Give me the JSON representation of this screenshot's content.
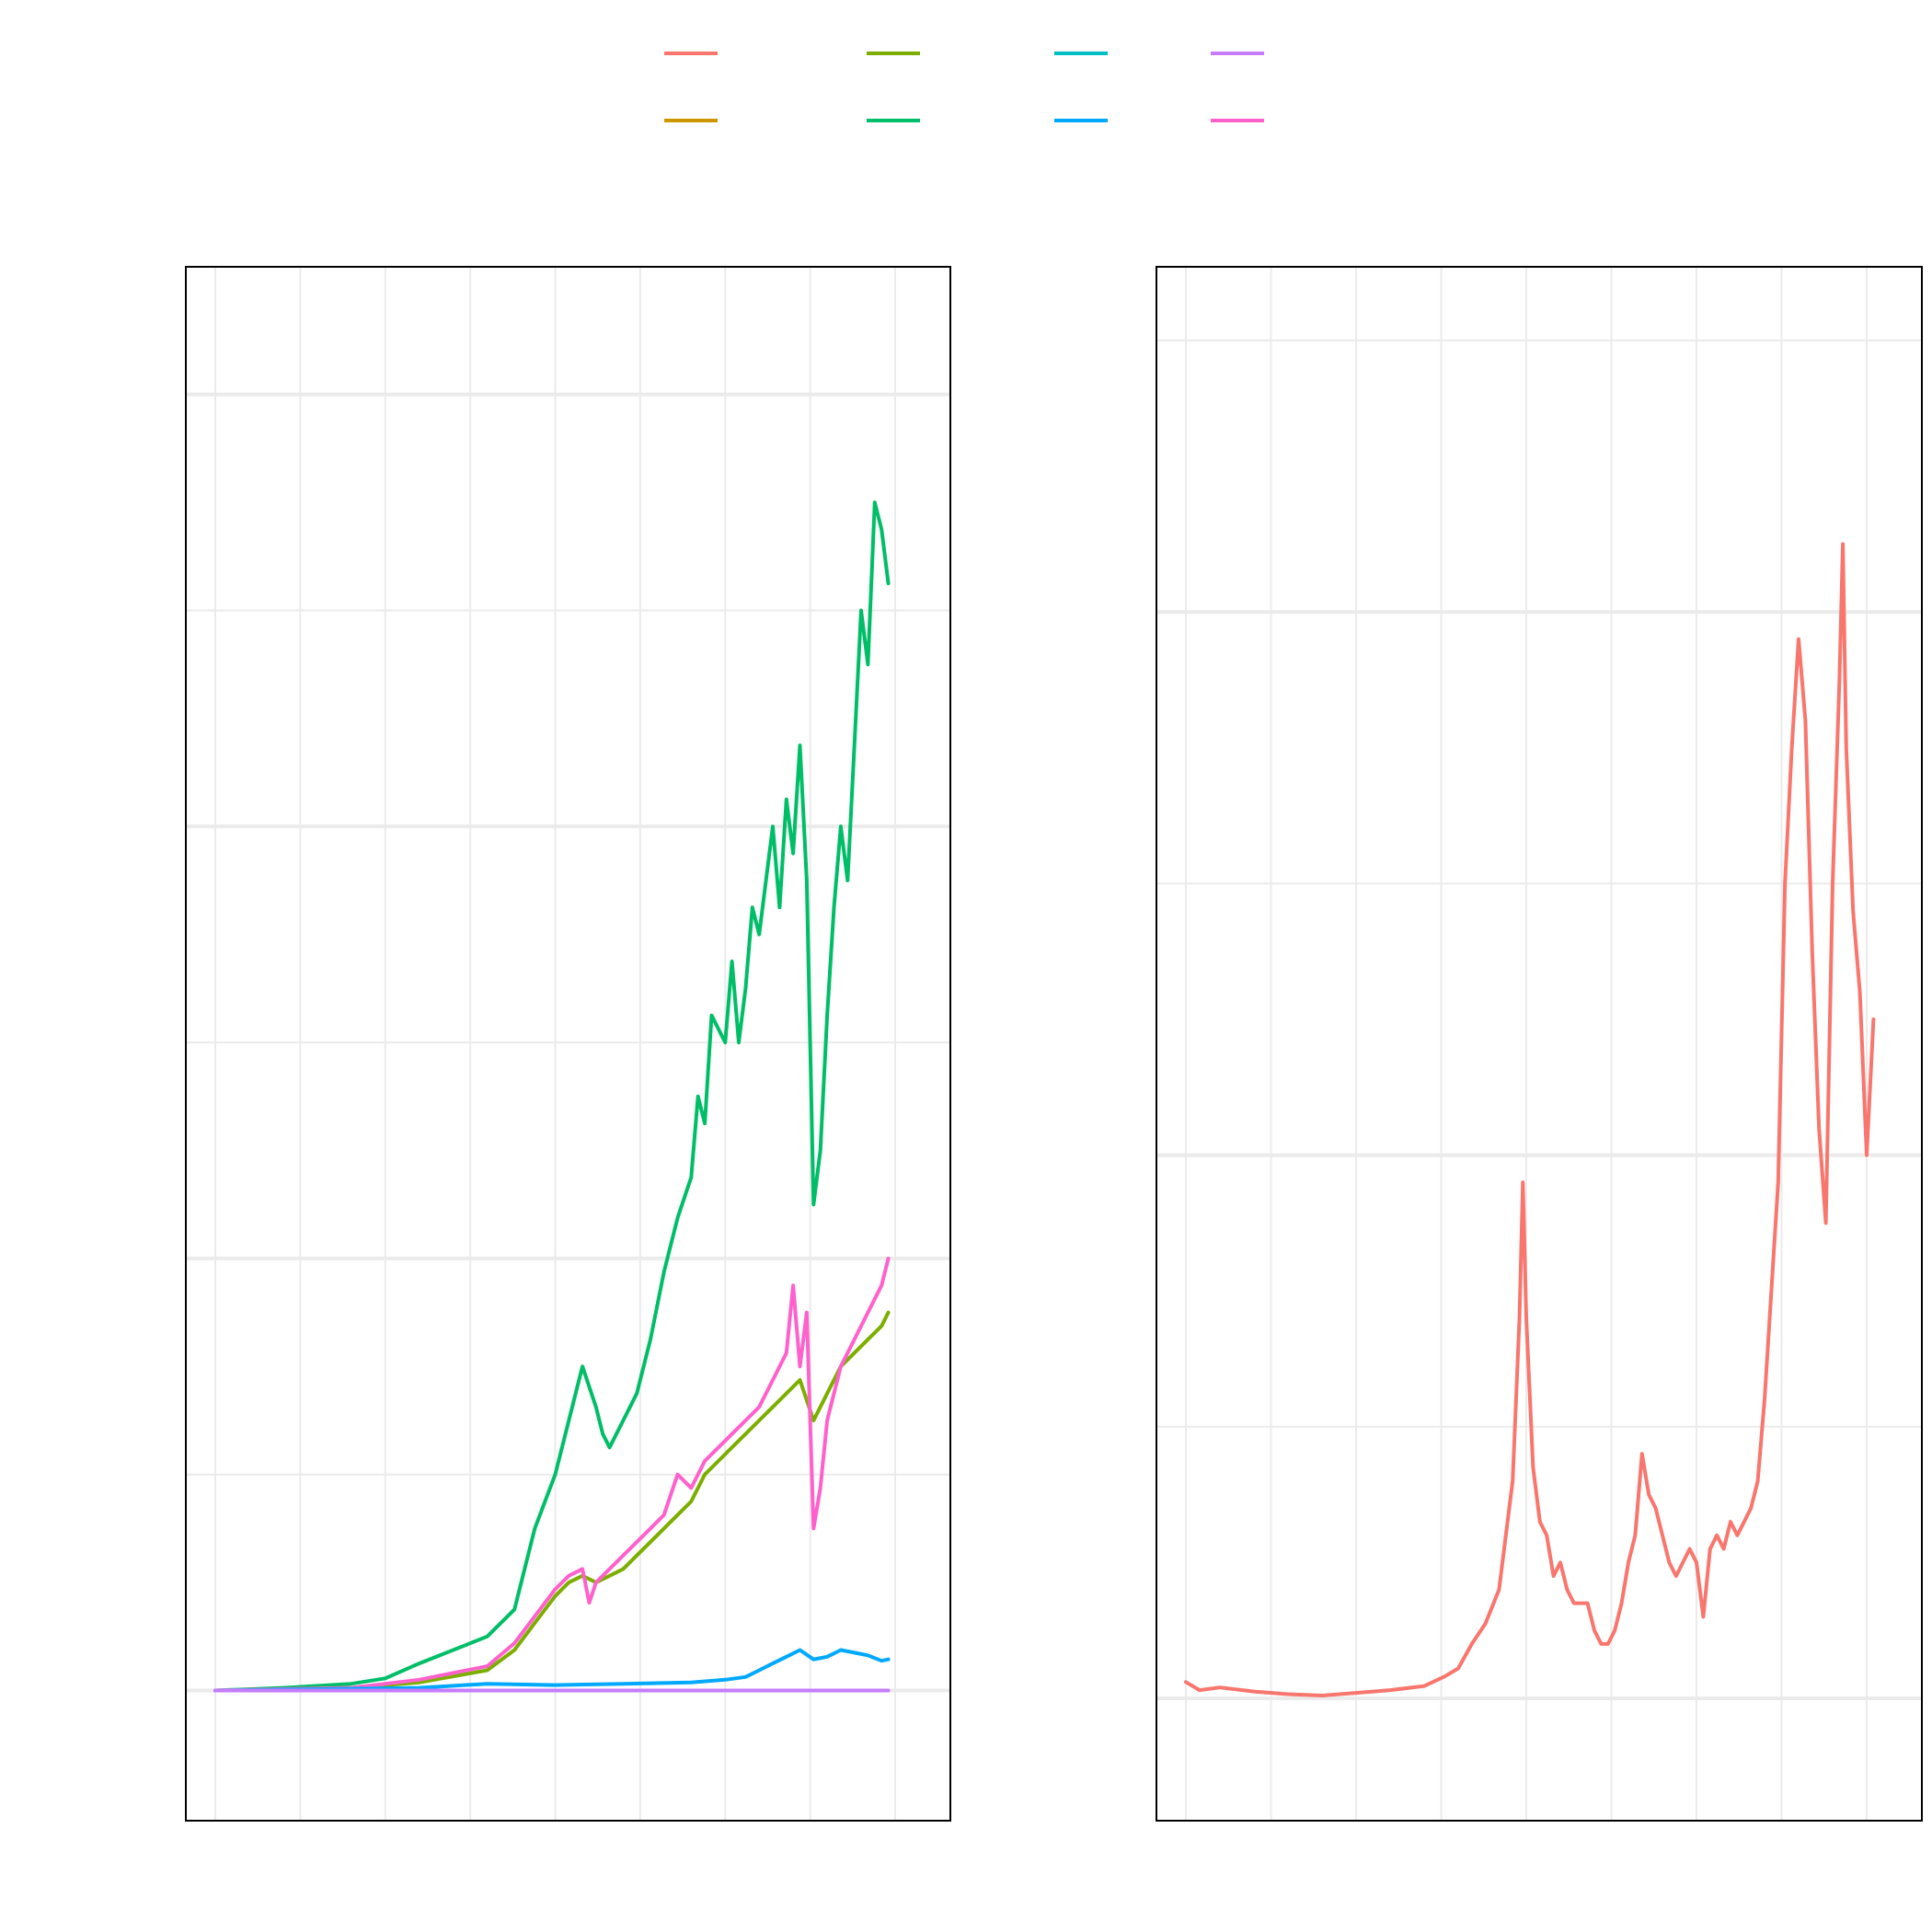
{
  "legend": {
    "items": [
      {
        "color": "#F8766D"
      },
      {
        "color": "#7CAE00"
      },
      {
        "color": "#00BFC4"
      },
      {
        "color": "#C77CFF"
      },
      {
        "color": "#CD9600"
      },
      {
        "color": "#00BE67"
      },
      {
        "color": "#00A9FF"
      },
      {
        "color": "#FF61CC"
      }
    ]
  },
  "chart_data": [
    {
      "type": "line",
      "title": "",
      "xlabel": "",
      "ylabel": "",
      "grid": true,
      "legend_position": "top",
      "x_range": [
        0,
        100
      ],
      "y_range": [
        -4.6,
        100
      ],
      "series": [
        {
          "color": "#00BE67",
          "points": [
            [
              0,
              0
            ],
            [
              10,
              0.2
            ],
            [
              20,
              0.5
            ],
            [
              25,
              0.9
            ],
            [
              30,
              2
            ],
            [
              40,
              4
            ],
            [
              44,
              6
            ],
            [
              47,
              12
            ],
            [
              50,
              16
            ],
            [
              52,
              20
            ],
            [
              53,
              22
            ],
            [
              54,
              24
            ],
            [
              56,
              21
            ],
            [
              57,
              19
            ],
            [
              58,
              18
            ],
            [
              60,
              20
            ],
            [
              62,
              22
            ],
            [
              64,
              26
            ],
            [
              66,
              31
            ],
            [
              68,
              35
            ],
            [
              70,
              38
            ],
            [
              71,
              44
            ],
            [
              72,
              42
            ],
            [
              73,
              50
            ],
            [
              75,
              48
            ],
            [
              76,
              54
            ],
            [
              77,
              48
            ],
            [
              78,
              52
            ],
            [
              79,
              58
            ],
            [
              80,
              56
            ],
            [
              81,
              60
            ],
            [
              82,
              64
            ],
            [
              83,
              58
            ],
            [
              84,
              66
            ],
            [
              85,
              62
            ],
            [
              86,
              70
            ],
            [
              87,
              60
            ],
            [
              88,
              36
            ],
            [
              89,
              40
            ],
            [
              90,
              50
            ],
            [
              91,
              58
            ],
            [
              92,
              64
            ],
            [
              93,
              60
            ],
            [
              94,
              70
            ],
            [
              95,
              80
            ],
            [
              96,
              76
            ],
            [
              97,
              88
            ],
            [
              98,
              86
            ],
            [
              99,
              82
            ]
          ]
        },
        {
          "color": "#7CAE00",
          "points": [
            [
              0,
              0
            ],
            [
              10,
              0.1
            ],
            [
              20,
              0.2
            ],
            [
              30,
              0.6
            ],
            [
              40,
              1.5
            ],
            [
              44,
              3
            ],
            [
              47,
              5
            ],
            [
              50,
              7
            ],
            [
              52,
              8
            ],
            [
              54,
              8.5
            ],
            [
              56,
              8
            ],
            [
              58,
              8.5
            ],
            [
              60,
              9
            ],
            [
              62,
              10
            ],
            [
              64,
              11
            ],
            [
              66,
              12
            ],
            [
              68,
              13
            ],
            [
              70,
              14
            ],
            [
              72,
              16
            ],
            [
              74,
              17
            ],
            [
              76,
              18
            ],
            [
              78,
              19
            ],
            [
              80,
              20
            ],
            [
              82,
              21
            ],
            [
              84,
              22
            ],
            [
              86,
              23
            ],
            [
              88,
              20
            ],
            [
              90,
              22
            ],
            [
              92,
              24
            ],
            [
              94,
              25
            ],
            [
              96,
              26
            ],
            [
              98,
              27
            ],
            [
              99,
              28
            ]
          ]
        },
        {
          "color": "#FF61CC",
          "points": [
            [
              0,
              0
            ],
            [
              10,
              0.1
            ],
            [
              20,
              0.2
            ],
            [
              30,
              0.8
            ],
            [
              40,
              1.8
            ],
            [
              44,
              3.5
            ],
            [
              47,
              5.5
            ],
            [
              50,
              7.5
            ],
            [
              52,
              8.5
            ],
            [
              54,
              9
            ],
            [
              55,
              6.5
            ],
            [
              56,
              8
            ],
            [
              58,
              9
            ],
            [
              60,
              10
            ],
            [
              62,
              11
            ],
            [
              64,
              12
            ],
            [
              66,
              13
            ],
            [
              68,
              16
            ],
            [
              70,
              15
            ],
            [
              72,
              17
            ],
            [
              74,
              18
            ],
            [
              76,
              19
            ],
            [
              78,
              20
            ],
            [
              80,
              21
            ],
            [
              82,
              23
            ],
            [
              84,
              25
            ],
            [
              85,
              30
            ],
            [
              86,
              24
            ],
            [
              87,
              28
            ],
            [
              88,
              12
            ],
            [
              89,
              15
            ],
            [
              90,
              20
            ],
            [
              92,
              24
            ],
            [
              94,
              26
            ],
            [
              96,
              28
            ],
            [
              98,
              30
            ],
            [
              99,
              32
            ]
          ]
        },
        {
          "color": "#00A9FF",
          "points": [
            [
              0,
              0
            ],
            [
              30,
              0.2
            ],
            [
              40,
              0.5
            ],
            [
              50,
              0.4
            ],
            [
              60,
              0.5
            ],
            [
              70,
              0.6
            ],
            [
              75,
              0.8
            ],
            [
              78,
              1.0
            ],
            [
              80,
              1.5
            ],
            [
              82,
              2.0
            ],
            [
              84,
              2.5
            ],
            [
              86,
              3.0
            ],
            [
              88,
              2.3
            ],
            [
              90,
              2.5
            ],
            [
              92,
              3.0
            ],
            [
              94,
              2.8
            ],
            [
              96,
              2.6
            ],
            [
              98,
              2.2
            ],
            [
              99,
              2.3
            ]
          ]
        },
        {
          "color": "#C77CFF",
          "points": [
            [
              0,
              0
            ],
            [
              99,
              0
            ]
          ]
        }
      ]
    },
    {
      "type": "line",
      "title": "",
      "xlabel": "",
      "ylabel": "",
      "grid": true,
      "legend_position": "top",
      "x_range": [
        0,
        100
      ],
      "y_range": [
        -4,
        100
      ],
      "series": [
        {
          "color": "#F8766D",
          "points": [
            [
              0,
              1.2
            ],
            [
              2,
              0.6
            ],
            [
              5,
              0.8
            ],
            [
              10,
              0.5
            ],
            [
              15,
              0.3
            ],
            [
              20,
              0.2
            ],
            [
              25,
              0.4
            ],
            [
              30,
              0.6
            ],
            [
              35,
              0.9
            ],
            [
              38,
              1.6
            ],
            [
              40,
              2.2
            ],
            [
              42,
              4
            ],
            [
              44,
              5.5
            ],
            [
              46,
              8
            ],
            [
              47,
              12
            ],
            [
              48,
              16
            ],
            [
              49,
              28
            ],
            [
              49.5,
              38
            ],
            [
              50,
              28
            ],
            [
              51,
              17
            ],
            [
              52,
              13
            ],
            [
              53,
              12
            ],
            [
              54,
              9
            ],
            [
              55,
              10
            ],
            [
              56,
              8
            ],
            [
              57,
              7
            ],
            [
              58,
              7
            ],
            [
              59,
              7
            ],
            [
              60,
              5
            ],
            [
              61,
              4
            ],
            [
              62,
              4
            ],
            [
              63,
              5
            ],
            [
              64,
              7
            ],
            [
              65,
              10
            ],
            [
              66,
              12
            ],
            [
              67,
              18
            ],
            [
              68,
              15
            ],
            [
              69,
              14
            ],
            [
              70,
              12
            ],
            [
              71,
              10
            ],
            [
              72,
              9
            ],
            [
              73,
              10
            ],
            [
              74,
              11
            ],
            [
              75,
              10
            ],
            [
              76,
              6
            ],
            [
              77,
              11
            ],
            [
              78,
              12
            ],
            [
              79,
              11
            ],
            [
              80,
              13
            ],
            [
              81,
              12
            ],
            [
              82,
              13
            ],
            [
              83,
              14
            ],
            [
              84,
              16
            ],
            [
              85,
              22
            ],
            [
              86,
              30
            ],
            [
              87,
              38
            ],
            [
              88,
              60
            ],
            [
              89,
              70
            ],
            [
              90,
              78
            ],
            [
              91,
              72
            ],
            [
              92,
              55
            ],
            [
              93,
              42
            ],
            [
              94,
              35
            ],
            [
              95,
              60
            ],
            [
              96,
              75
            ],
            [
              96.5,
              85
            ],
            [
              97,
              70
            ],
            [
              98,
              58
            ],
            [
              99,
              52
            ],
            [
              100,
              40
            ],
            [
              101,
              50
            ]
          ]
        }
      ]
    }
  ]
}
